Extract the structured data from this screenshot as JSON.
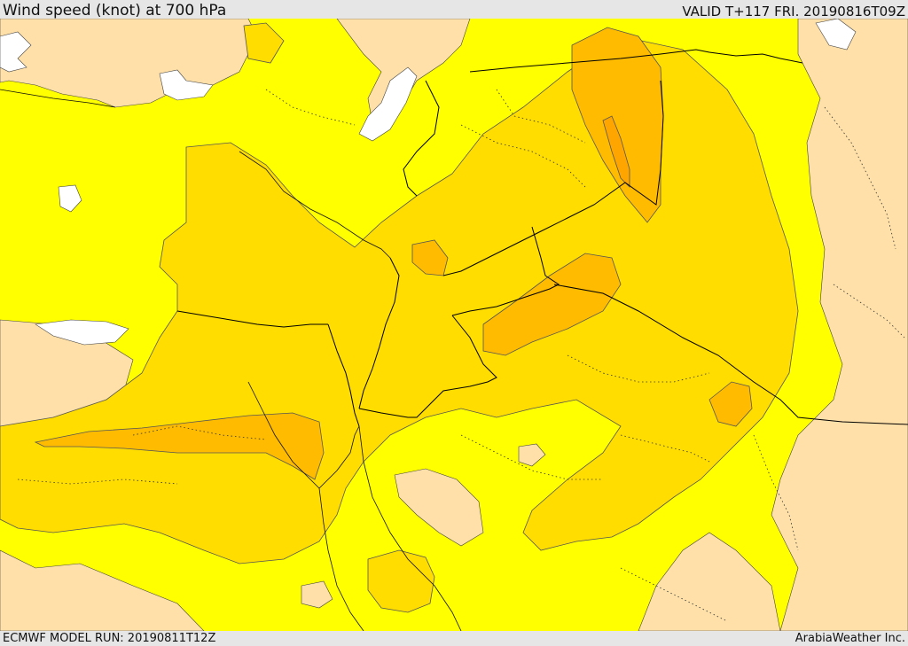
{
  "header": {
    "title": "Wind speed (knot) at 700 hPa",
    "valid": "VALID T+117 FRI. 20190816T09Z"
  },
  "footer": {
    "model_run": "ECMWF MODEL RUN: 20190811T12Z",
    "credit": "ArabiaWeather Inc."
  },
  "map": {
    "field": "wind speed",
    "level": "700 hPa",
    "colors": {
      "land_below_threshold": "#ffe0a8",
      "sea_or_no_data": "#ffffff",
      "band_light": "#ffff00",
      "band_mid": "#ffdd00",
      "band_strong": "#ffbb00",
      "band_strongest": "#ffa500",
      "borders": "#000000"
    }
  }
}
